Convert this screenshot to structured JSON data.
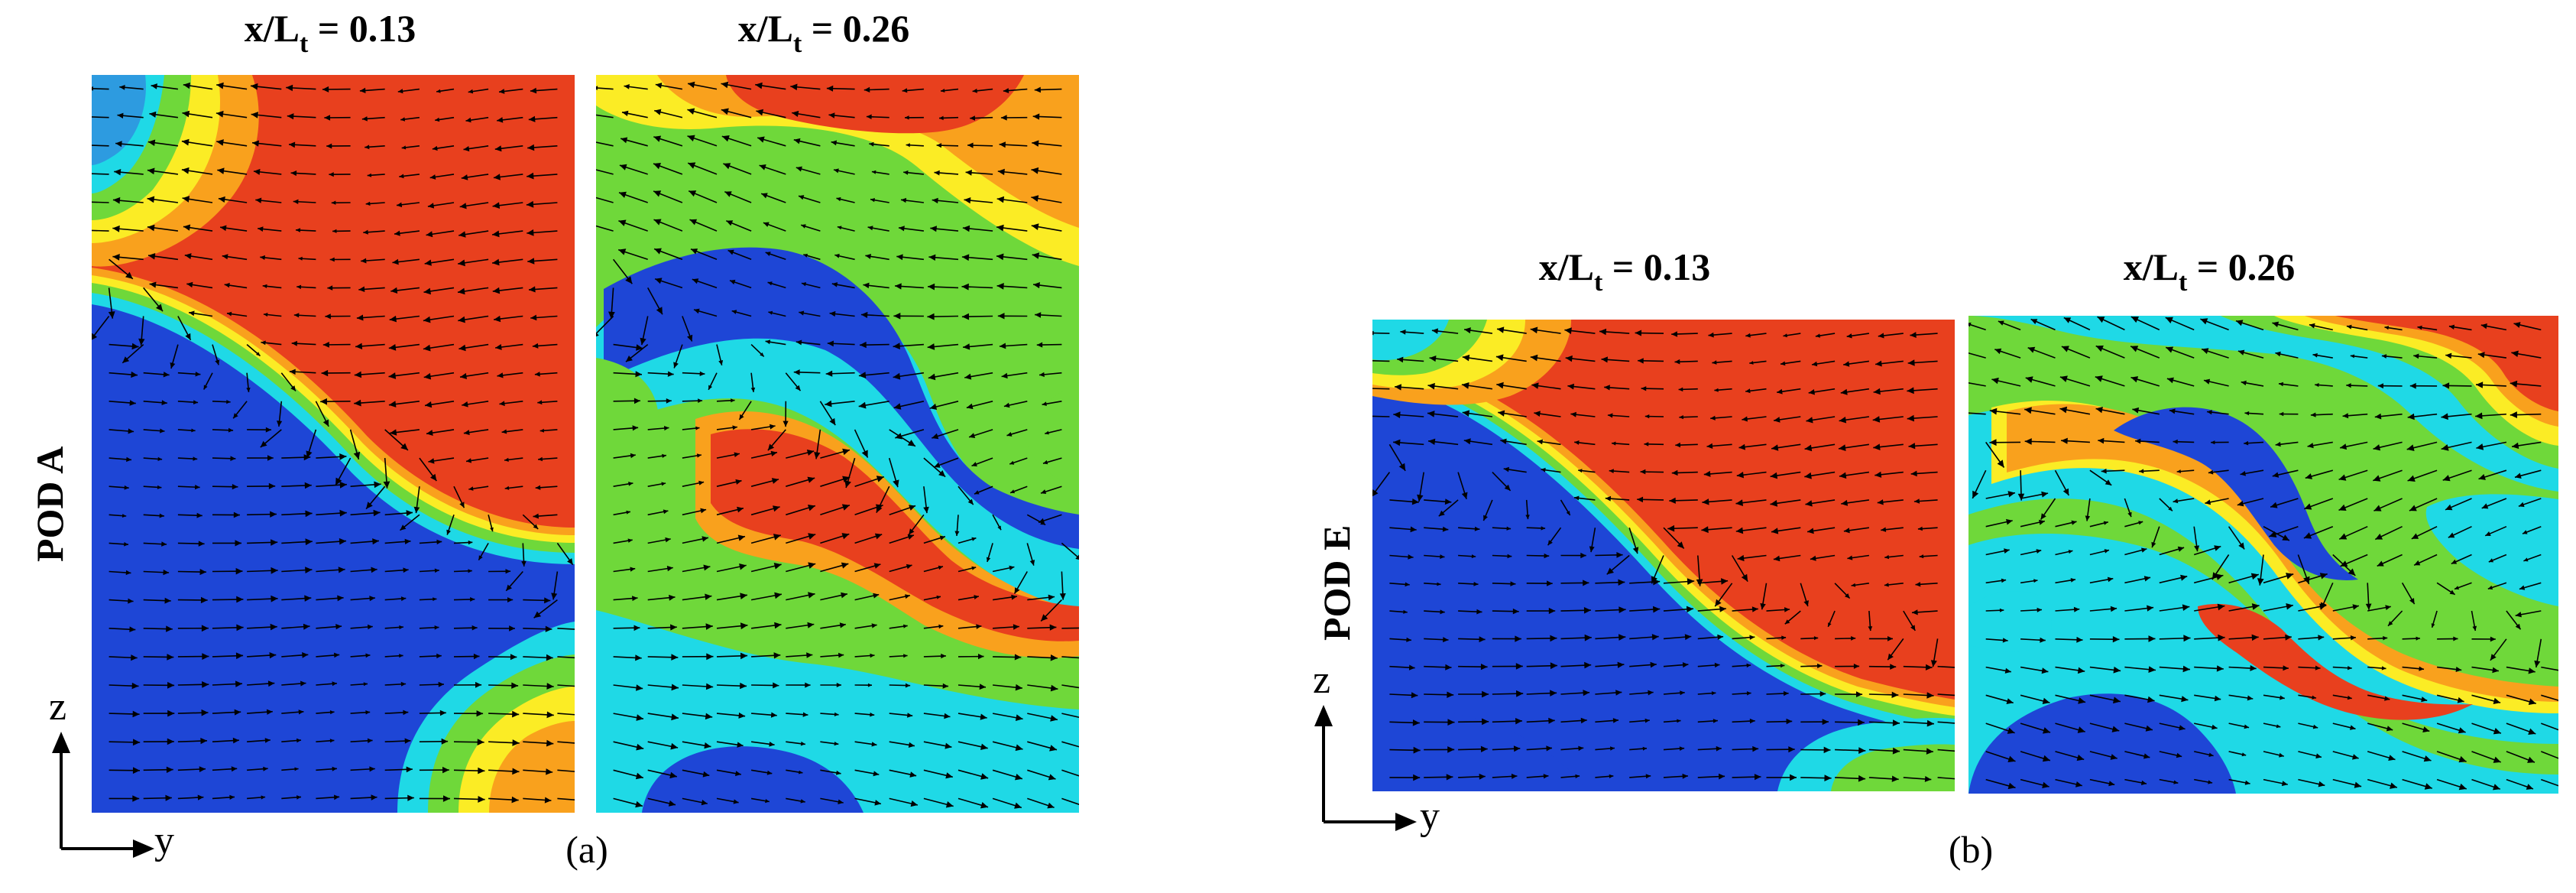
{
  "figure_a": {
    "row_label": "POD A",
    "panels": [
      {
        "title_main": "x/L",
        "title_sub": "t",
        "title_rest": " = 0.13"
      },
      {
        "title_main": "x/L",
        "title_sub": "t",
        "title_rest": " = 0.26"
      }
    ],
    "caption": "(a)"
  },
  "figure_b": {
    "row_label": "POD E",
    "panels": [
      {
        "title_main": "x/L",
        "title_sub": "t",
        "title_rest": " = 0.13"
      },
      {
        "title_main": "x/L",
        "title_sub": "t",
        "title_rest": " = 0.26"
      }
    ],
    "caption": "(b)"
  },
  "axes": {
    "vertical": "z",
    "horizontal": "y"
  },
  "colors": {
    "red": "#e8401e",
    "orange": "#f9a11d",
    "yellow": "#fbec25",
    "green": "#6fd83a",
    "cyan": "#1fd9e6",
    "blue": "#1e46d6",
    "arrow": "#000000"
  }
}
